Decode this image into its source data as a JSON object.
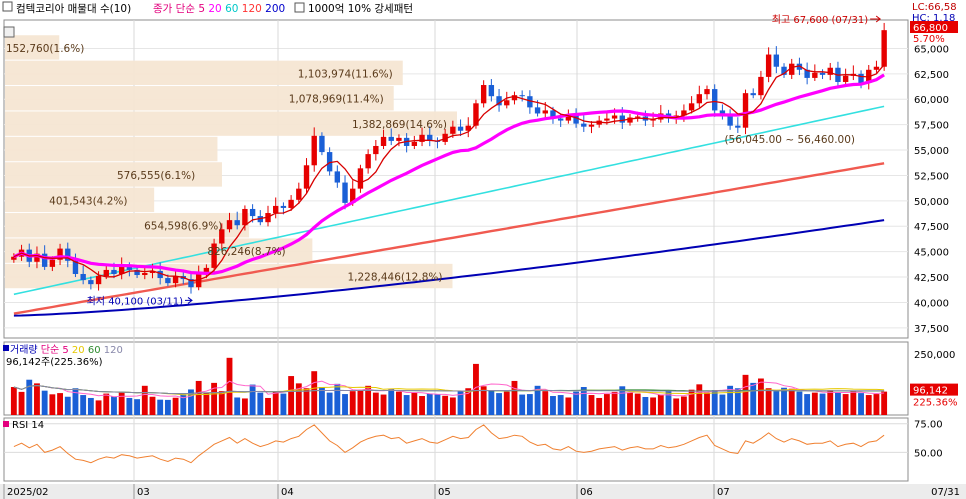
{
  "header": {
    "title": "컴텍코리아 매물대 수(10)",
    "ma_label": "종가 단순",
    "ma_periods": [
      "5",
      "20",
      "60",
      "120",
      "200"
    ],
    "ma_colors": [
      "#e3007d",
      "#ff00ff",
      "#00c8c8",
      "#ff3333",
      "#0000cc"
    ],
    "pattern_label": "1000억 10% 강세패턴"
  },
  "price_panel": {
    "y_ticks": [
      "65,000",
      "62,500",
      "60,000",
      "57,500",
      "55,000",
      "52,500",
      "50,000",
      "47,500",
      "45,000",
      "42,500",
      "40,000",
      "37,500"
    ],
    "lc_label": "LC:66,58",
    "hc_label": "HC: 1.18",
    "current_price": "66,800",
    "change_pct": "5.70%",
    "high_note": "최고 67,600 (07/31)",
    "low_note": "최저 40,100 (03/11)",
    "range_note": "(56,045.00 ~ 56,460.00)",
    "volume_profile": [
      {
        "label": "152,760(1.6%)",
        "price_low": 63800,
        "price_high": 66300,
        "share": 0.12
      },
      {
        "label": "1,103,974(11.6%)",
        "price_low": 61300,
        "price_high": 63800,
        "share": 0.88
      },
      {
        "label": "1,078,969(11.4%)",
        "price_low": 58800,
        "price_high": 61300,
        "share": 0.86
      },
      {
        "label": "1,382,869(14.6%)",
        "price_low": 56300,
        "price_high": 58800,
        "share": 1.0
      },
      {
        "label": "",
        "price_low": 53800,
        "price_high": 56300,
        "share": 0.47
      },
      {
        "label": "576,555(6.1%)",
        "price_low": 51300,
        "price_high": 53800,
        "share": 0.48
      },
      {
        "label": "401,543(4.2%)",
        "price_low": 48800,
        "price_high": 51300,
        "share": 0.33
      },
      {
        "label": "654,598(6.9%)",
        "price_low": 46300,
        "price_high": 48800,
        "share": 0.54
      },
      {
        "label": "826,246(8.7%)",
        "price_low": 43800,
        "price_high": 46300,
        "share": 0.68
      },
      {
        "label": "1,228,446(12.8%)",
        "price_low": 41300,
        "price_high": 43800,
        "share": 0.99
      }
    ]
  },
  "volume_panel": {
    "legend_prefix": "거래량",
    "legend_ma": "단순",
    "legend_periods": [
      "5",
      "20",
      "60",
      "120"
    ],
    "value_label": "96,142주(225.36%)",
    "y_ticks": [
      "250,000"
    ],
    "current_volume": "96,142",
    "current_ratio": "225.36%"
  },
  "rsi_panel": {
    "label": "RSI 14",
    "y_ticks": [
      "75.00",
      "50.00"
    ],
    "current": ""
  },
  "x_axis": {
    "labels": [
      "2025/02",
      "03",
      "04",
      "05",
      "06",
      "07",
      "07/31"
    ]
  },
  "chart_data": {
    "type": "candlestick",
    "title": "컴텍코리아",
    "price_ylim": [
      36500,
      67800
    ],
    "volume_ylim": [
      0,
      300000
    ],
    "rsi_ylim": [
      25,
      80
    ],
    "x_range": [
      "2025/02",
      "07/31"
    ],
    "grid": true,
    "high": {
      "value": 67600,
      "date": "07/31"
    },
    "low": {
      "value": 40100,
      "date": "03/11"
    },
    "last_close": 66800,
    "last_volume": 96142,
    "ohlc_anchor_closes": [
      44500,
      45200,
      44000,
      44800,
      43500,
      44200,
      45300,
      44100,
      42800,
      42200,
      41800,
      42600,
      43200,
      42800,
      43600,
      43200,
      42700,
      42900,
      43100,
      42400,
      41900,
      42600,
      42300,
      41500,
      42800,
      43400,
      45800,
      47200,
      48100,
      47600,
      49200,
      48500,
      47900,
      48800,
      49500,
      49300,
      50100,
      51200,
      53500,
      56400,
      54800,
      52900,
      51800,
      49800,
      51200,
      53200,
      54600,
      55400,
      56300,
      55900,
      56200,
      55400,
      55800,
      56500,
      55900,
      55800,
      56600,
      57300,
      56900,
      57400,
      59600,
      61400,
      60300,
      59400,
      59900,
      60400,
      60300,
      59200,
      58600,
      58900,
      58100,
      57900,
      58400,
      57600,
      57300,
      57500,
      57900,
      58100,
      58400,
      57700,
      58200,
      58300,
      57900,
      58000,
      58600,
      58100,
      58400,
      58900,
      59600,
      60500,
      61000,
      58900,
      58300,
      57400,
      57200,
      60600,
      60400,
      62200,
      64400,
      63200,
      62400,
      63500,
      62900,
      62100,
      62600,
      62400,
      63100,
      61700,
      62300,
      62500,
      61600,
      62900,
      63200,
      66800
    ],
    "ma5_end": 62200,
    "ma20_end": 61800,
    "ma60_end": 59300,
    "ma120_end": 53700,
    "ma200_end": 48100,
    "volume_anchors": [
      115000,
      95000,
      145000,
      130000,
      100000,
      85000,
      90000,
      75000,
      110000,
      82000,
      70000,
      60000,
      88000,
      76000,
      92000,
      70000,
      65000,
      120000,
      75000,
      63000,
      62000,
      71000,
      85000,
      105000,
      140000,
      90000,
      132000,
      98000,
      235000,
      72000,
      68000,
      125000,
      92000,
      70000,
      95000,
      88000,
      160000,
      130000,
      110000,
      180000,
      115000,
      92000,
      128000,
      86000,
      98000,
      104000,
      120000,
      92000,
      84000,
      108000,
      96000,
      82000,
      93000,
      78000,
      88000,
      85000,
      79000,
      72000,
      98000,
      110000,
      210000,
      118000,
      102000,
      90000,
      96000,
      140000,
      84000,
      86000,
      120000,
      98000,
      78000,
      82000,
      72000,
      96000,
      115000,
      82000,
      70000,
      86000,
      95000,
      118000,
      92000,
      88000,
      74000,
      72000,
      84000,
      98000,
      68000,
      76000,
      104000,
      126000,
      92000,
      102000,
      84000,
      120000,
      110000,
      165000,
      132000,
      150000,
      110000,
      98000,
      112000,
      108000,
      96000,
      86000,
      92000,
      88000,
      102000,
      94000,
      86000,
      98000,
      90000,
      82000,
      86000,
      96142
    ],
    "rsi_anchors": [
      55,
      58,
      54,
      57,
      50,
      52,
      55,
      49,
      44,
      43,
      41,
      44,
      46,
      45,
      48,
      47,
      45,
      46,
      47,
      44,
      42,
      45,
      44,
      41,
      47,
      52,
      57,
      60,
      63,
      58,
      62,
      58,
      55,
      57,
      60,
      59,
      62,
      64,
      70,
      74,
      67,
      60,
      56,
      50,
      54,
      59,
      62,
      64,
      65,
      62,
      63,
      58,
      60,
      62,
      59,
      58,
      61,
      64,
      62,
      63,
      70,
      74,
      67,
      62,
      63,
      65,
      64,
      59,
      56,
      57,
      53,
      52,
      55,
      51,
      50,
      51,
      53,
      54,
      55,
      52,
      54,
      55,
      53,
      53,
      56,
      54,
      55,
      57,
      60,
      63,
      65,
      56,
      53,
      50,
      49,
      60,
      58,
      62,
      67,
      62,
      59,
      62,
      60,
      57,
      58,
      58,
      60,
      55,
      57,
      58,
      55,
      59,
      60,
      65
    ]
  }
}
